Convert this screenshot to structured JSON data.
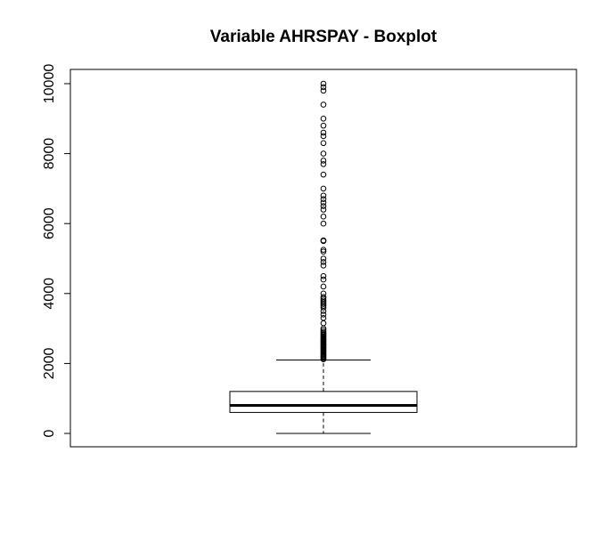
{
  "chart_data": {
    "type": "boxplot",
    "title": "Variable AHRSPAY - Boxplot",
    "xlabel": "",
    "ylabel": "",
    "ylim": [
      0,
      10000
    ],
    "yticks": [
      0,
      2000,
      4000,
      6000,
      8000,
      10000
    ],
    "ytick_labels": [
      "0",
      "2000",
      "4000",
      "6000",
      "8000",
      "10000"
    ],
    "grid": false,
    "box": {
      "min": 0,
      "q1": 600,
      "median": 800,
      "q3": 1200,
      "whisker_high": 2100
    },
    "outliers": [
      2120,
      2150,
      2180,
      2200,
      2230,
      2260,
      2290,
      2320,
      2350,
      2380,
      2410,
      2440,
      2470,
      2500,
      2530,
      2560,
      2590,
      2620,
      2650,
      2680,
      2710,
      2740,
      2770,
      2800,
      2830,
      2860,
      2900,
      2950,
      3000,
      3150,
      3300,
      3400,
      3500,
      3600,
      3650,
      3700,
      3750,
      3800,
      3850,
      3900,
      4000,
      4200,
      4400,
      4500,
      4800,
      4900,
      5000,
      5200,
      5250,
      5500,
      5520,
      6000,
      6200,
      6400,
      6500,
      6600,
      6700,
      6800,
      7000,
      7400,
      7700,
      7800,
      8000,
      8300,
      8500,
      8600,
      8800,
      9000,
      9400,
      9800,
      9900,
      10000
    ]
  }
}
